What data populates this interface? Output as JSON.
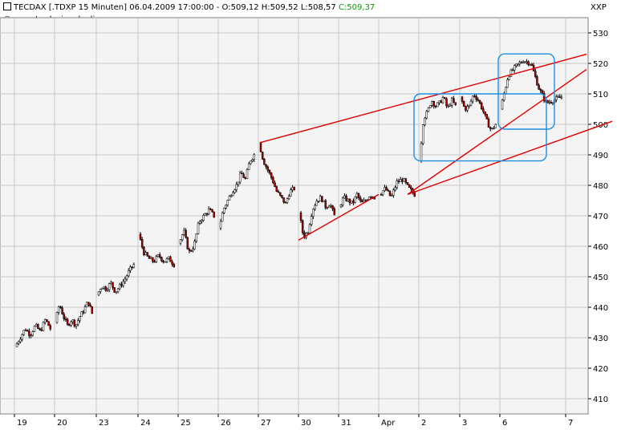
{
  "header": {
    "title_line": "TECDAX [.TDXP  15 Minuten] 06.04.2009 17:00:00 - O:509,12 H:509,52 L:508,57",
    "close_text": "C:509,37",
    "watermark": "© www.tradesignalonline.com",
    "corner_symbol": "XXP"
  },
  "colors": {
    "background": "#f4f4f4",
    "grid": "#c8c8c8",
    "up_candle": "#ffffff",
    "down_candle": "#b00000",
    "trendline": "#e00000",
    "box": "#1e8fe0",
    "close_value": "#00a000"
  },
  "chart_data": {
    "type": "candlestick",
    "title": "TECDAX [.TDXP  15 Minuten]",
    "xlabel": "",
    "ylabel": "",
    "ylim": [
      405,
      535
    ],
    "yticks": [
      410,
      420,
      430,
      440,
      450,
      460,
      470,
      480,
      490,
      500,
      510,
      520,
      530
    ],
    "x_tick_labels": [
      "19",
      "20",
      "23",
      "24",
      "25",
      "26",
      "27",
      "30",
      "31",
      "Apr",
      "2",
      "3",
      "6",
      "7"
    ],
    "grid": true,
    "daily_path": [
      {
        "day": "19",
        "points": [
          427,
          430,
          433,
          431,
          434,
          432,
          436,
          433
        ]
      },
      {
        "day": "20",
        "points": [
          435,
          441,
          437,
          434,
          436,
          434,
          437,
          439,
          442,
          438
        ]
      },
      {
        "day": "23",
        "points": [
          444,
          447,
          446,
          448,
          445,
          447,
          449,
          452,
          454
        ]
      },
      {
        "day": "24",
        "points": [
          464,
          458,
          456,
          455,
          457,
          455,
          456,
          454
        ]
      },
      {
        "day": "25",
        "points": [
          461,
          465,
          458,
          460,
          468,
          470,
          472,
          470
        ]
      },
      {
        "day": "26",
        "points": [
          466,
          472,
          475,
          478,
          480,
          484,
          482,
          488,
          490
        ]
      },
      {
        "day": "27",
        "points": [
          494,
          488,
          485,
          482,
          478,
          476,
          474,
          478,
          479
        ]
      },
      {
        "day": "30",
        "points": [
          471,
          463,
          465,
          472,
          475,
          476,
          473,
          474,
          470
        ]
      },
      {
        "day": "31",
        "points": [
          473,
          476,
          475,
          474,
          477,
          474,
          475,
          477,
          476
        ]
      },
      {
        "day": "Apr",
        "points": [
          477,
          479,
          476,
          481,
          482,
          479,
          477
        ]
      },
      {
        "day": "2",
        "points": [
          488,
          502,
          504,
          508,
          506,
          507,
          509,
          505,
          508,
          506
        ]
      },
      {
        "day": "3",
        "points": [
          509,
          505,
          506,
          510,
          508,
          505,
          501,
          498,
          500
        ]
      },
      {
        "day": "6",
        "points": [
          505,
          516,
          519,
          521,
          520,
          512,
          507,
          508,
          509
        ]
      }
    ],
    "annotations": [
      {
        "type": "trendline",
        "from": {
          "day": "27",
          "value": 494
        },
        "to": {
          "day": "7",
          "value": 523
        }
      },
      {
        "type": "trendline",
        "from": {
          "day": "30",
          "value": 462
        },
        "to": {
          "day": "Apr",
          "value": 477
        }
      },
      {
        "type": "trendline",
        "from": {
          "day": "Apr",
          "value": 477
        },
        "to": {
          "day": "7",
          "value": 518
        }
      },
      {
        "type": "trendline",
        "from": {
          "day": "Apr",
          "value": 477
        },
        "to": {
          "day": "7",
          "value": 501
        }
      },
      {
        "type": "box",
        "from": {
          "day": "2",
          "value": 488
        },
        "to": {
          "day": "6",
          "value": 510
        }
      },
      {
        "type": "box",
        "from": {
          "day": "6",
          "value": 500
        },
        "to": {
          "day": "6",
          "value": 521
        }
      }
    ]
  }
}
